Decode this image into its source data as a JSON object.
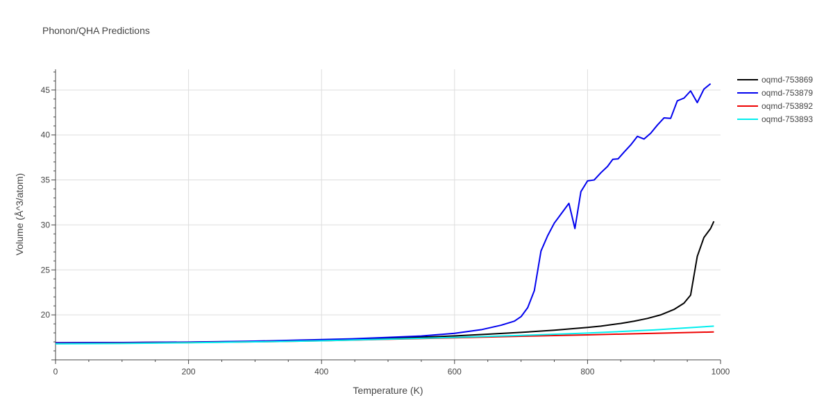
{
  "chart_data": {
    "type": "line",
    "title": "Phonon/QHA Predictions",
    "xlabel": "Temperature (K)",
    "ylabel": "Volume (Å^3/atom)",
    "xlim": [
      0,
      1000
    ],
    "ylim": [
      15.0,
      47.3
    ],
    "x_ticks": [
      0,
      200,
      400,
      600,
      800,
      1000
    ],
    "y_ticks": [
      20,
      25,
      30,
      35,
      40,
      45
    ],
    "grid": true,
    "legend_position": "top-right",
    "series": [
      {
        "name": "oqmd-753869",
        "color": "#000000",
        "points": [
          [
            0,
            16.9
          ],
          [
            100,
            16.92
          ],
          [
            200,
            16.97
          ],
          [
            300,
            17.05
          ],
          [
            400,
            17.2
          ],
          [
            500,
            17.4
          ],
          [
            550,
            17.52
          ],
          [
            600,
            17.66
          ],
          [
            650,
            17.85
          ],
          [
            700,
            18.05
          ],
          [
            750,
            18.3
          ],
          [
            800,
            18.6
          ],
          [
            820,
            18.75
          ],
          [
            850,
            19.05
          ],
          [
            870,
            19.3
          ],
          [
            890,
            19.6
          ],
          [
            910,
            20.0
          ],
          [
            930,
            20.6
          ],
          [
            945,
            21.3
          ],
          [
            955,
            22.2
          ],
          [
            965,
            26.5
          ],
          [
            975,
            28.6
          ],
          [
            985,
            29.6
          ],
          [
            990,
            30.4
          ]
        ]
      },
      {
        "name": "oqmd-753879",
        "color": "#0000ee",
        "points": [
          [
            0,
            16.9
          ],
          [
            100,
            16.93
          ],
          [
            200,
            16.98
          ],
          [
            300,
            17.08
          ],
          [
            400,
            17.25
          ],
          [
            450,
            17.35
          ],
          [
            500,
            17.5
          ],
          [
            550,
            17.65
          ],
          [
            600,
            17.95
          ],
          [
            640,
            18.35
          ],
          [
            670,
            18.85
          ],
          [
            690,
            19.3
          ],
          [
            700,
            19.8
          ],
          [
            710,
            20.8
          ],
          [
            720,
            22.7
          ],
          [
            730,
            27.1
          ],
          [
            740,
            28.8
          ],
          [
            750,
            30.2
          ],
          [
            760,
            31.2
          ],
          [
            772,
            32.4
          ],
          [
            781,
            29.6
          ],
          [
            790,
            33.7
          ],
          [
            800,
            34.9
          ],
          [
            810,
            35.0
          ],
          [
            820,
            35.8
          ],
          [
            830,
            36.5
          ],
          [
            838,
            37.3
          ],
          [
            846,
            37.35
          ],
          [
            855,
            38.1
          ],
          [
            865,
            38.9
          ],
          [
            875,
            39.85
          ],
          [
            885,
            39.55
          ],
          [
            895,
            40.2
          ],
          [
            905,
            41.1
          ],
          [
            915,
            41.9
          ],
          [
            925,
            41.85
          ],
          [
            935,
            43.8
          ],
          [
            945,
            44.1
          ],
          [
            955,
            44.9
          ],
          [
            965,
            43.6
          ],
          [
            975,
            45.1
          ],
          [
            985,
            45.7
          ]
        ]
      },
      {
        "name": "oqmd-753892",
        "color": "#ee0000",
        "points": [
          [
            0,
            16.8
          ],
          [
            100,
            16.85
          ],
          [
            200,
            16.92
          ],
          [
            300,
            17.0
          ],
          [
            400,
            17.12
          ],
          [
            500,
            17.28
          ],
          [
            600,
            17.45
          ],
          [
            700,
            17.62
          ],
          [
            800,
            17.78
          ],
          [
            900,
            17.95
          ],
          [
            990,
            18.1
          ]
        ]
      },
      {
        "name": "oqmd-753893",
        "color": "#00eeee",
        "points": [
          [
            0,
            16.78
          ],
          [
            100,
            16.82
          ],
          [
            200,
            16.9
          ],
          [
            300,
            17.0
          ],
          [
            400,
            17.12
          ],
          [
            500,
            17.3
          ],
          [
            600,
            17.5
          ],
          [
            700,
            17.72
          ],
          [
            800,
            17.98
          ],
          [
            900,
            18.32
          ],
          [
            990,
            18.75
          ]
        ]
      }
    ]
  }
}
